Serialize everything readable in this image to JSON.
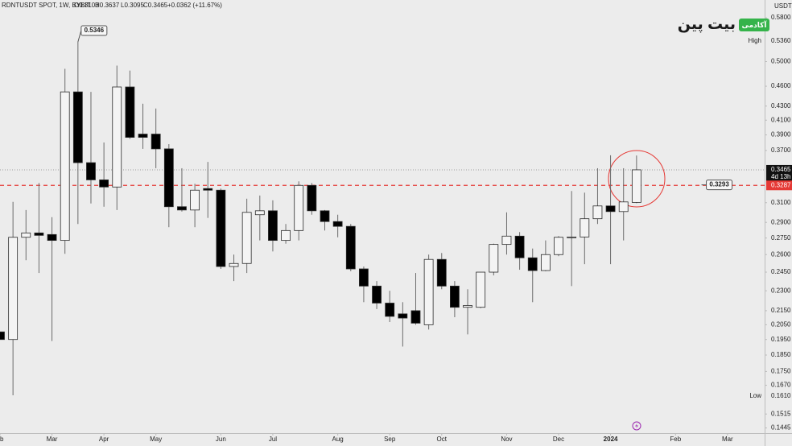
{
  "chart_data": {
    "type": "candlestick",
    "header": "RDNTUSDT SPOT, 1W, BYBIT",
    "ohlc_text": [
      "O0.3103",
      "H0.3637",
      "L0.3095",
      "C0.3465"
    ],
    "change_text": "+0.0362 (+11.67%)",
    "currency": "USDT",
    "logo": {
      "name": "بیت پین",
      "tag": "آکادمی"
    },
    "categories": [
      null,
      null,
      null,
      null,
      null,
      null,
      null,
      null,
      null,
      null,
      null,
      null,
      null,
      null,
      null,
      null,
      null,
      null,
      null,
      null,
      null,
      null,
      null,
      null,
      null,
      null,
      null,
      null,
      null,
      null,
      null,
      null,
      null,
      null,
      null,
      null,
      null,
      null,
      null,
      null,
      null,
      null,
      null,
      null,
      null,
      null,
      null,
      null,
      null,
      null
    ],
    "series": [
      {
        "up_color": "#f4f4f4",
        "down_color": "#000000",
        "border_color": "#2b2b2b",
        "wick_color": "#6b6b6b",
        "open": [
          0.2001,
          0.195,
          0.2757,
          0.2798,
          0.2783,
          0.2728,
          0.4512,
          0.355,
          0.3349,
          0.3269,
          0.4588,
          0.3911,
          0.3911,
          0.372,
          0.3058,
          0.3024,
          0.3252,
          0.3234,
          0.2497,
          0.2523,
          0.2976,
          0.3016,
          0.2728,
          0.2821,
          0.3287,
          0.3016,
          0.2908,
          0.2861,
          0.2477,
          0.2337,
          0.2206,
          0.2127,
          0.215,
          0.205,
          0.2558,
          0.2337,
          0.2175,
          0.2175,
          0.245,
          0.2691,
          0.2768,
          0.2572,
          0.2463,
          0.26,
          0.2757,
          0.276,
          0.2936,
          0.3066,
          0.3008,
          0.3103
        ],
        "high": [
          0.2001,
          0.3108,
          0.3024,
          0.3314,
          0.2952,
          0.4878,
          0.5346,
          0.4512,
          0.3801,
          0.4932,
          0.485,
          0.4335,
          0.4265,
          0.378,
          0.3484,
          0.3305,
          0.3559,
          0.3252,
          0.26,
          0.3142,
          0.3176,
          0.3125,
          0.2884,
          0.3332,
          0.3314,
          0.3024,
          0.2976,
          0.2884,
          0.2497,
          0.2377,
          0.23,
          0.2213,
          0.2443,
          0.26,
          0.2614,
          0.2377,
          0.2312,
          0.245,
          0.2698,
          0.3,
          0.2806,
          0.2654,
          0.2728,
          0.2768,
          0.3225,
          0.3207,
          0.3484,
          0.364,
          0.3484,
          0.3637
        ],
        "low": [
          0.195,
          0.1614,
          0.2551,
          0.2443,
          0.194,
          0.2607,
          0.2884,
          0.3092,
          0.3058,
          0.3024,
          0.3847,
          0.372,
          0.3484,
          0.2853,
          0.3008,
          0.2853,
          0.2944,
          0.2477,
          0.2377,
          0.2443,
          0.2728,
          0.2628,
          0.2698,
          0.2728,
          0.2976,
          0.2821,
          0.2757,
          0.2457,
          0.2213,
          0.2162,
          0.2069,
          0.1904,
          0.205,
          0.2017,
          0.2312,
          0.2103,
          0.1984,
          0.2168,
          0.2423,
          0.26,
          0.247,
          0.2213,
          0.2457,
          0.2586,
          0.2337,
          0.2517,
          0.2884,
          0.2517,
          0.2728,
          0.3095
        ],
        "close": [
          0.195,
          0.2757,
          0.2798,
          0.2775,
          0.2728,
          0.4512,
          0.355,
          0.3349,
          0.3269,
          0.4588,
          0.3868,
          0.3868,
          0.372,
          0.3058,
          0.3024,
          0.3234,
          0.3234,
          0.2497,
          0.2523,
          0.3,
          0.3016,
          0.2728,
          0.2821,
          0.3287,
          0.3016,
          0.2908,
          0.2861,
          0.2477,
          0.2337,
          0.2206,
          0.2109,
          0.2097,
          0.2061,
          0.2558,
          0.2337,
          0.2175,
          0.2188,
          0.245,
          0.2691,
          0.2768,
          0.2572,
          0.2463,
          0.26,
          0.2757,
          0.276,
          0.2936,
          0.3066,
          0.3008,
          0.3108,
          0.3465
        ]
      }
    ],
    "log_scale": true,
    "ylim": [
      0.142,
      0.616
    ],
    "yticks": [
      {
        "value": 0.58,
        "label": "0.5800"
      },
      {
        "value": 0.5,
        "label": "0.5000"
      },
      {
        "value": 0.46,
        "label": "0.4600"
      },
      {
        "value": 0.43,
        "label": "0.4300"
      },
      {
        "value": 0.41,
        "label": "0.4100"
      },
      {
        "value": 0.39,
        "label": "0.3900"
      },
      {
        "value": 0.37,
        "label": "0.3700"
      },
      {
        "value": 0.31,
        "label": "0.3100"
      },
      {
        "value": 0.29,
        "label": "0.2900"
      },
      {
        "value": 0.275,
        "label": "0.2750"
      },
      {
        "value": 0.26,
        "label": "0.2600"
      },
      {
        "value": 0.245,
        "label": "0.2450"
      },
      {
        "value": 0.23,
        "label": "0.2300"
      },
      {
        "value": 0.215,
        "label": "0.2150"
      },
      {
        "value": 0.205,
        "label": "0.2050"
      },
      {
        "value": 0.195,
        "label": "0.1950"
      },
      {
        "value": 0.185,
        "label": "0.1850"
      },
      {
        "value": 0.175,
        "label": "0.1750"
      },
      {
        "value": 0.167,
        "label": "0.1670"
      },
      {
        "value": 0.1515,
        "label": "0.1515"
      },
      {
        "value": 0.1445,
        "label": "0.1445"
      }
    ],
    "xlim": [
      0,
      58.86
    ],
    "xticks": [
      {
        "value": 0,
        "label": "b"
      },
      {
        "value": 4,
        "label": "Mar"
      },
      {
        "value": 8,
        "label": "Apr"
      },
      {
        "value": 12,
        "label": "May"
      },
      {
        "value": 17,
        "label": "Jun"
      },
      {
        "value": 21,
        "label": "Jul"
      },
      {
        "value": 26,
        "label": "Aug"
      },
      {
        "value": 30,
        "label": "Sep"
      },
      {
        "value": 34,
        "label": "Oct"
      },
      {
        "value": 39,
        "label": "Nov"
      },
      {
        "value": 43,
        "label": "Dec"
      },
      {
        "value": 47,
        "label": "2024"
      },
      {
        "value": 52,
        "label": "Feb"
      },
      {
        "value": 56,
        "label": "Mar"
      }
    ],
    "high_marker": {
      "text": "High",
      "value": 0.536,
      "label": "0.5360"
    },
    "low_marker": {
      "text": "Low",
      "value": 0.161,
      "label": "0.1610"
    },
    "last_price": {
      "value": 0.3465,
      "label": "0.3465",
      "countdown": "4d 13h"
    },
    "price_line": {
      "value": 0.3287,
      "label": "0.3287",
      "color": "#e53935"
    },
    "annotations": [
      {
        "x": 6,
        "value": 0.5346,
        "label": "0.5346"
      },
      {
        "x": 54,
        "value": 0.3293,
        "label": "0.3293"
      }
    ]
  }
}
